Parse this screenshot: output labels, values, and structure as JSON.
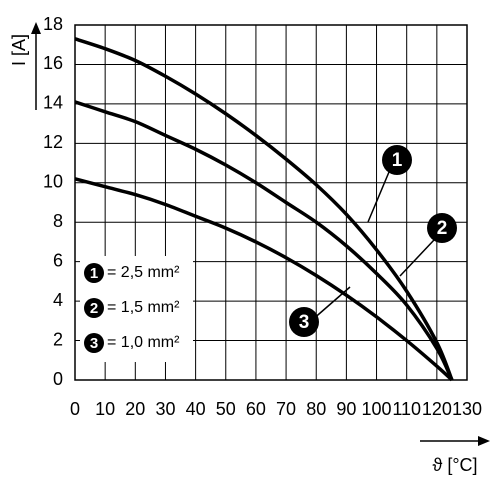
{
  "chart_data": {
    "type": "line",
    "y_label": "I [A]",
    "x_label": "ϑ [°C]",
    "x": [
      0,
      10,
      20,
      30,
      40,
      50,
      60,
      70,
      80,
      90,
      100,
      110,
      120,
      125
    ],
    "series": [
      {
        "name": "= 2,5 mm²",
        "marker": "1",
        "color": "#000000",
        "values": [
          17.3,
          16.8,
          16.2,
          15.4,
          14.5,
          13.5,
          12.4,
          11.2,
          9.9,
          8.4,
          6.6,
          4.5,
          1.9,
          0
        ]
      },
      {
        "name": "= 1,5 mm²",
        "marker": "2",
        "color": "#000000",
        "values": [
          14.1,
          13.6,
          13.1,
          12.4,
          11.7,
          10.9,
          10.0,
          9.0,
          8.0,
          6.8,
          5.4,
          3.8,
          1.6,
          0
        ]
      },
      {
        "name": "= 1,0 mm²",
        "marker": "3",
        "color": "#000000",
        "values": [
          10.2,
          9.8,
          9.4,
          8.9,
          8.3,
          7.7,
          7.0,
          6.2,
          5.3,
          4.3,
          3.2,
          2.0,
          0.7,
          0
        ]
      }
    ],
    "xlim": [
      0,
      130
    ],
    "xticks": [
      0,
      10,
      20,
      30,
      40,
      50,
      60,
      70,
      80,
      90,
      100,
      110,
      120,
      130
    ],
    "ylim": [
      0,
      18
    ],
    "yticks": [
      0,
      2,
      4,
      6,
      8,
      10,
      12,
      14,
      16,
      18
    ],
    "grid": true
  }
}
